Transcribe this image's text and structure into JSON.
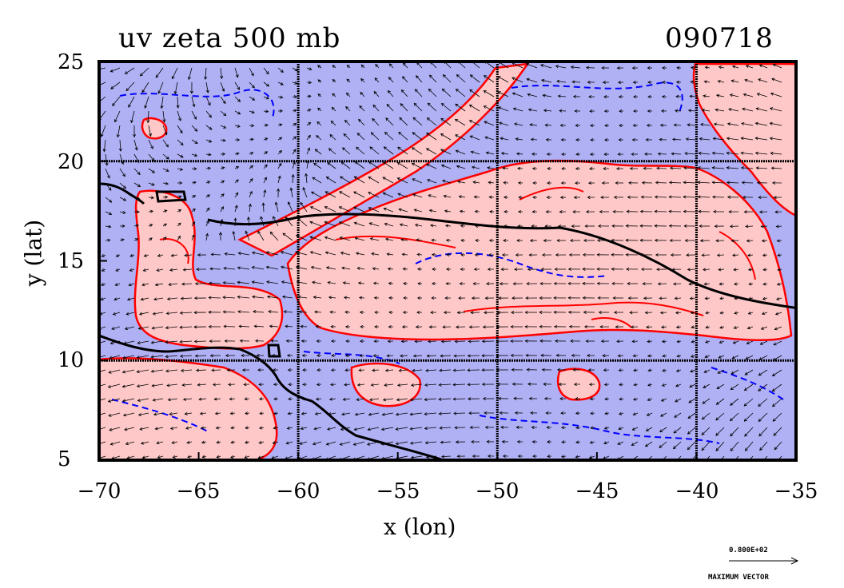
{
  "chart_data": {
    "type": "contour",
    "title_left": "uv zeta 500 mb",
    "title_right": "090718",
    "xlabel": "x (lon)",
    "ylabel": "y (lat)",
    "xlim": [
      -70,
      -35
    ],
    "ylim": [
      5,
      25
    ],
    "x_ticks": [
      "−70",
      "−65",
      "−60",
      "−55",
      "−50",
      "−45",
      "−40",
      "−35"
    ],
    "y_ticks": [
      "5",
      "10",
      "15",
      "20",
      "25"
    ],
    "grid_lon": [
      -60,
      -50,
      -40
    ],
    "grid_lat": [
      10,
      20
    ],
    "colors": {
      "positive_fill": "#ffc8c8",
      "negative_fill": "#b0b0f5",
      "positive_contour": "#ff0000",
      "negative_contour": "#0000ff",
      "vectors": "#000000"
    },
    "legend": {
      "value": "0.800E+02",
      "label": "MAXIMUM VECTOR"
    }
  }
}
